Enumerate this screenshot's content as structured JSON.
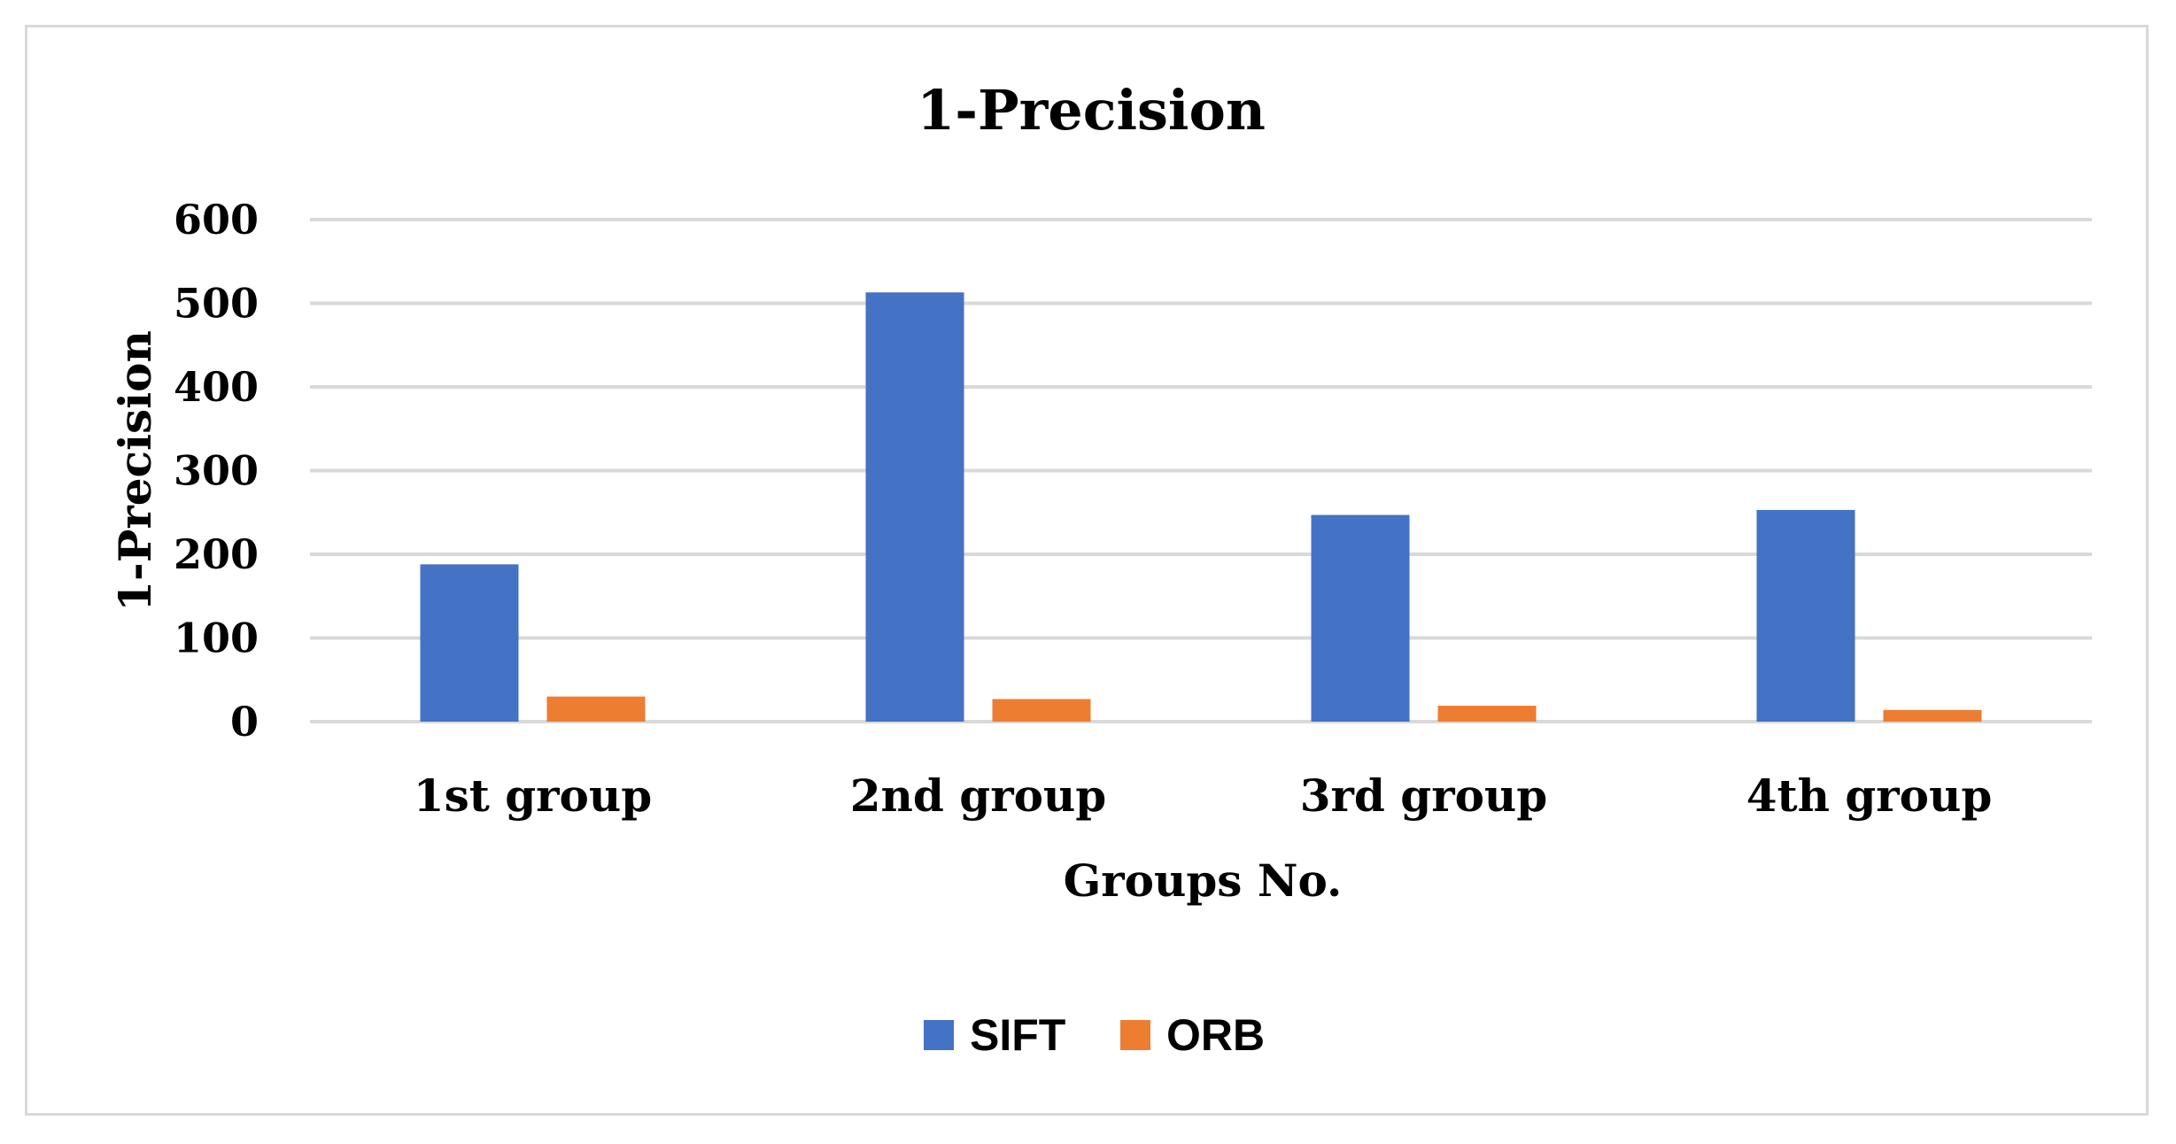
{
  "chart_data": {
    "type": "bar",
    "title": "1-Precision",
    "xlabel": "Groups No.",
    "ylabel": "1-Precision",
    "categories": [
      "1st group",
      "2nd group",
      "3rd group",
      "4th group"
    ],
    "series": [
      {
        "name": "SIFT",
        "color": "#4472C4",
        "values": [
          188,
          513,
          247,
          253
        ]
      },
      {
        "name": "ORB",
        "color": "#ED7D31",
        "values": [
          30,
          27,
          19,
          14
        ]
      }
    ],
    "ylim": [
      0,
      600
    ],
    "yticks": [
      "0",
      "100",
      "200",
      "300",
      "400",
      "500",
      "600"
    ],
    "ytick_values": [
      0,
      100,
      200,
      300,
      400,
      500,
      600
    ],
    "grid": true,
    "legend_position": "bottom"
  }
}
